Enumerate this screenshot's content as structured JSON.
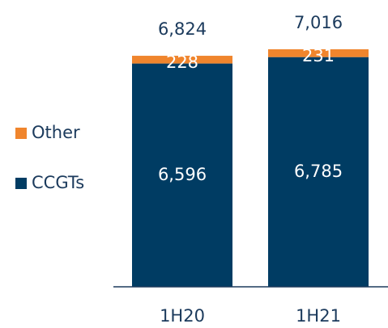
{
  "chart_data": {
    "type": "stacked-bar",
    "categories": [
      "1H20",
      "1H21"
    ],
    "series": [
      {
        "name": "CCGTs",
        "color": "#003c63",
        "values": [
          6596,
          6785
        ],
        "value_labels": [
          "6,596",
          "6,785"
        ]
      },
      {
        "name": "Other",
        "color": "#f0852d",
        "values": [
          228,
          231
        ]
      }
    ],
    "totals": [
      6824,
      7016
    ],
    "total_labels": [
      "6,824",
      "7,016"
    ]
  }
}
